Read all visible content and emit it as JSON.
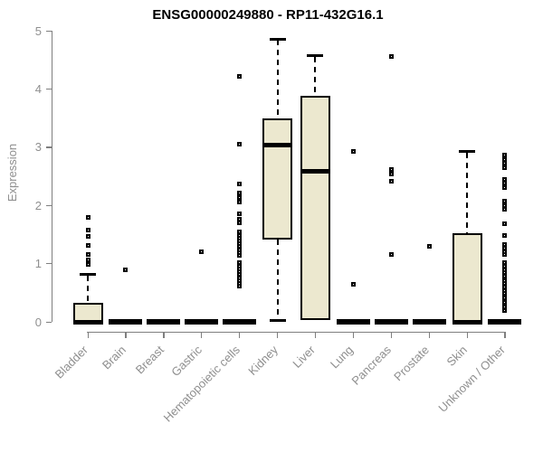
{
  "chart_data": {
    "type": "box",
    "title": "ENSG00000249880 - RP11-432G16.1",
    "ylabel": "Expression",
    "xlabel": "",
    "ylim": [
      0,
      5
    ],
    "yticks": [
      0,
      1,
      2,
      3,
      4,
      5
    ],
    "grid": false,
    "legend": null,
    "box_fill_color": "#ece8cf",
    "box_stroke_color": "#000000",
    "axis_color": "#7f7f7f",
    "axis_text_color": "#8f8f8f",
    "categories": [
      "Bladder",
      "Brain",
      "Breast",
      "Gastric",
      "Hematopoietic cells",
      "Kidney",
      "Liver",
      "Lung",
      "Pancreas",
      "Prostate",
      "Skin",
      "Unknown / Other"
    ],
    "series": [
      {
        "label": "Bladder",
        "whisker_low": 0,
        "q1": 0,
        "median": 0,
        "q3": 0.33,
        "whisker_high": 0.81,
        "outliers": [
          1.8,
          1.57,
          1.46,
          1.31,
          1.15,
          1.07,
          0.99
        ]
      },
      {
        "label": "Brain",
        "whisker_low": 0,
        "q1": 0,
        "median": 0,
        "q3": 0,
        "whisker_high": 0,
        "outliers": [
          0.9
        ]
      },
      {
        "label": "Breast",
        "whisker_low": 0,
        "q1": 0,
        "median": 0,
        "q3": 0,
        "whisker_high": 0,
        "outliers": []
      },
      {
        "label": "Gastric",
        "whisker_low": 0,
        "q1": 0,
        "median": 0,
        "q3": 0,
        "whisker_high": 0,
        "outliers": [
          1.21
        ]
      },
      {
        "label": "Hematopoietic cells",
        "whisker_low": 0,
        "q1": 0,
        "median": 0,
        "q3": 0,
        "whisker_high": 0,
        "outliers": [
          4.21,
          3.05,
          2.37,
          2.21,
          2.13,
          2.06,
          1.85,
          1.77,
          1.7,
          1.54,
          1.49,
          1.44,
          1.39,
          1.34,
          1.29,
          1.24,
          1.19,
          1.14,
          1.01,
          0.96,
          0.91,
          0.86,
          0.81,
          0.76,
          0.71,
          0.66,
          0.61
        ]
      },
      {
        "label": "Kidney",
        "whisker_low": 0.02,
        "q1": 1.41,
        "median": 3.04,
        "q3": 3.5,
        "whisker_high": 4.86,
        "outliers": []
      },
      {
        "label": "Liver",
        "whisker_low": 0.03,
        "q1": 0.03,
        "median": 2.58,
        "q3": 3.88,
        "whisker_high": 4.57,
        "outliers": []
      },
      {
        "label": "Lung",
        "whisker_low": 0,
        "q1": 0,
        "median": 0,
        "q3": 0,
        "whisker_high": 0,
        "outliers": [
          2.93,
          0.64
        ]
      },
      {
        "label": "Pancreas",
        "whisker_low": 0,
        "q1": 0,
        "median": 0,
        "q3": 0,
        "whisker_high": 0,
        "outliers": [
          4.55,
          2.61,
          2.54,
          2.42,
          1.15
        ]
      },
      {
        "label": "Prostate",
        "whisker_low": 0,
        "q1": 0,
        "median": 0,
        "q3": 0,
        "whisker_high": 0,
        "outliers": [
          1.3
        ]
      },
      {
        "label": "Skin",
        "whisker_low": 0,
        "q1": 0,
        "median": 0,
        "q3": 1.52,
        "whisker_high": 2.92,
        "outliers": []
      },
      {
        "label": "Unknown / Other",
        "whisker_low": 0,
        "q1": 0,
        "median": 0,
        "q3": 0,
        "whisker_high": 0,
        "outliers": [
          2.86,
          2.79,
          2.73,
          2.64,
          2.45,
          2.38,
          2.31,
          2.08,
          2.0,
          1.93,
          1.69,
          1.49,
          1.33,
          1.27,
          1.21,
          1.15,
          1.02,
          0.96,
          0.9,
          0.84,
          0.79,
          0.71,
          0.66,
          0.6,
          0.53,
          0.49,
          0.45,
          0.41,
          0.37,
          0.33,
          0.29,
          0.25,
          0.2
        ]
      }
    ]
  }
}
